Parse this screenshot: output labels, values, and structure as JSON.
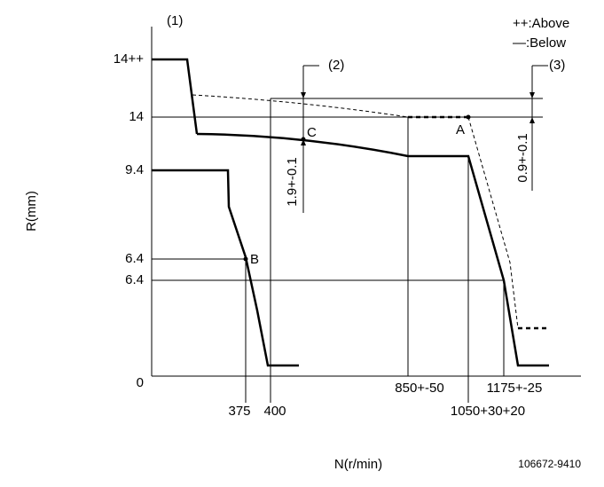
{
  "diagram": {
    "corner_label": "(1)",
    "legend": {
      "above": "++:Above",
      "below": "—:Below"
    },
    "y_axis_label": "R(mm)",
    "x_axis_label": "N(r/min)",
    "part_number": "106672-9410",
    "y_labels": [
      "14++",
      "14",
      "9.4",
      "6.4",
      "6.4",
      "0"
    ],
    "x_labels": [
      "375",
      "400",
      "850+-50",
      "1050+30+20",
      "1175+-25"
    ],
    "callouts": [
      "(2)",
      "(3)"
    ],
    "dimensions": [
      "1.9+-0.1",
      "0.9+-0.1"
    ],
    "points": [
      "C",
      "A",
      "B"
    ]
  }
}
